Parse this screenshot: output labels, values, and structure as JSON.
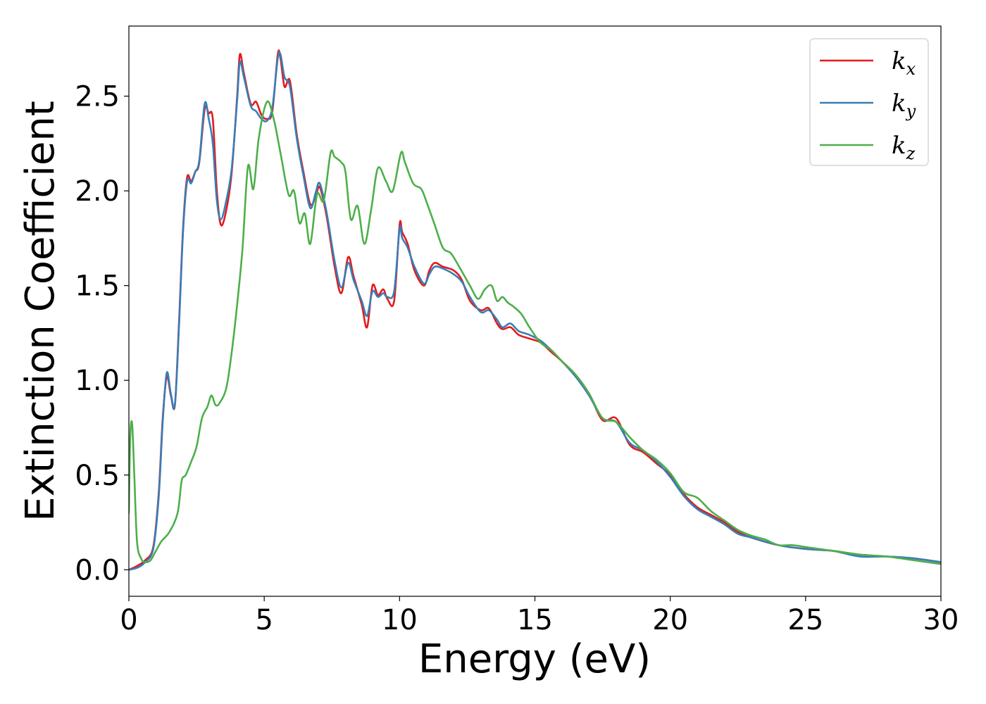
{
  "chart_data": {
    "type": "line",
    "xlabel": "Energy (eV)",
    "ylabel": "Extinction Coefficient",
    "xlim": [
      0,
      30
    ],
    "ylim": [
      -0.14,
      2.87
    ],
    "xticks": [
      0,
      5,
      10,
      15,
      20,
      25,
      30
    ],
    "xtick_labels": [
      "0",
      "5",
      "10",
      "15",
      "20",
      "25",
      "30"
    ],
    "yticks": [
      0.0,
      0.5,
      1.0,
      1.5,
      2.0,
      2.5
    ],
    "ytick_labels": [
      "0.0",
      "0.5",
      "1.0",
      "1.5",
      "2.0",
      "2.5"
    ],
    "grid": false,
    "legend_position": "top-right",
    "series": [
      {
        "name": "k",
        "subscript": "x",
        "color": "#e41a1c",
        "x": [
          0,
          0.3,
          0.6,
          0.9,
          1.1,
          1.25,
          1.4,
          1.55,
          1.7,
          1.85,
          2.0,
          2.15,
          2.3,
          2.45,
          2.6,
          2.8,
          2.95,
          3.1,
          3.25,
          3.4,
          3.6,
          3.8,
          4.0,
          4.1,
          4.25,
          4.5,
          4.7,
          4.9,
          5.1,
          5.3,
          5.5,
          5.6,
          5.75,
          5.95,
          6.2,
          6.45,
          6.7,
          6.9,
          7.05,
          7.3,
          7.6,
          7.85,
          8.1,
          8.3,
          8.6,
          8.8,
          9.0,
          9.2,
          9.4,
          9.55,
          9.8,
          10.0,
          10.1,
          10.3,
          10.55,
          10.9,
          11.1,
          11.3,
          11.6,
          12.0,
          12.3,
          12.6,
          13.0,
          13.3,
          13.6,
          13.8,
          14.1,
          14.4,
          14.8,
          15.2,
          15.6,
          16.0,
          16.5,
          17.0,
          17.5,
          18.0,
          18.5,
          19.0,
          19.5,
          20.0,
          20.5,
          21.0,
          21.5,
          22.0,
          22.5,
          23.0,
          24.0,
          25.0,
          26.0,
          27.0,
          28.0,
          29.0,
          30.0
        ],
        "values": [
          0.0,
          0.02,
          0.05,
          0.12,
          0.4,
          0.8,
          1.02,
          0.92,
          0.87,
          1.3,
          1.8,
          2.07,
          2.05,
          2.1,
          2.15,
          2.43,
          2.41,
          2.38,
          2.0,
          1.82,
          1.9,
          2.1,
          2.5,
          2.72,
          2.62,
          2.46,
          2.47,
          2.4,
          2.38,
          2.42,
          2.72,
          2.7,
          2.55,
          2.58,
          2.3,
          2.1,
          1.93,
          1.97,
          2.02,
          1.87,
          1.6,
          1.46,
          1.65,
          1.55,
          1.4,
          1.28,
          1.5,
          1.45,
          1.48,
          1.43,
          1.42,
          1.82,
          1.78,
          1.72,
          1.58,
          1.5,
          1.58,
          1.62,
          1.6,
          1.58,
          1.53,
          1.42,
          1.37,
          1.38,
          1.3,
          1.27,
          1.28,
          1.24,
          1.22,
          1.2,
          1.15,
          1.1,
          1.03,
          0.93,
          0.79,
          0.8,
          0.66,
          0.62,
          0.56,
          0.5,
          0.4,
          0.33,
          0.29,
          0.25,
          0.2,
          0.17,
          0.13,
          0.11,
          0.1,
          0.08,
          0.07,
          0.06,
          0.04
        ]
      },
      {
        "name": "k",
        "subscript": "y",
        "color": "#377eb8",
        "x": [
          0,
          0.3,
          0.6,
          0.9,
          1.1,
          1.25,
          1.4,
          1.55,
          1.7,
          1.85,
          2.0,
          2.15,
          2.3,
          2.45,
          2.6,
          2.8,
          2.95,
          3.1,
          3.25,
          3.4,
          3.6,
          3.8,
          4.0,
          4.1,
          4.25,
          4.5,
          4.7,
          4.9,
          5.1,
          5.3,
          5.5,
          5.6,
          5.75,
          5.95,
          6.2,
          6.45,
          6.7,
          6.9,
          7.05,
          7.3,
          7.6,
          7.85,
          8.1,
          8.3,
          8.6,
          8.8,
          9.0,
          9.2,
          9.4,
          9.55,
          9.8,
          10.0,
          10.1,
          10.3,
          10.55,
          10.9,
          11.1,
          11.3,
          11.6,
          12.0,
          12.3,
          12.6,
          13.0,
          13.3,
          13.6,
          13.8,
          14.1,
          14.4,
          14.8,
          15.2,
          15.6,
          16.0,
          16.5,
          17.0,
          17.5,
          18.0,
          18.5,
          19.0,
          19.5,
          20.0,
          20.5,
          21.0,
          21.5,
          22.0,
          22.5,
          23.0,
          24.0,
          25.0,
          26.0,
          27.0,
          28.0,
          29.0,
          30.0
        ],
        "values": [
          0.0,
          0.01,
          0.04,
          0.11,
          0.38,
          0.78,
          1.04,
          0.93,
          0.87,
          1.28,
          1.78,
          2.05,
          2.04,
          2.1,
          2.16,
          2.46,
          2.38,
          2.25,
          1.95,
          1.85,
          1.95,
          2.12,
          2.48,
          2.68,
          2.6,
          2.45,
          2.42,
          2.38,
          2.37,
          2.44,
          2.7,
          2.72,
          2.6,
          2.55,
          2.28,
          2.08,
          1.91,
          1.99,
          2.04,
          1.89,
          1.63,
          1.49,
          1.62,
          1.53,
          1.42,
          1.34,
          1.47,
          1.44,
          1.46,
          1.44,
          1.47,
          1.8,
          1.75,
          1.7,
          1.6,
          1.51,
          1.56,
          1.6,
          1.59,
          1.56,
          1.52,
          1.44,
          1.36,
          1.37,
          1.32,
          1.28,
          1.3,
          1.26,
          1.24,
          1.21,
          1.16,
          1.1,
          1.02,
          0.92,
          0.8,
          0.78,
          0.67,
          0.63,
          0.57,
          0.49,
          0.39,
          0.32,
          0.28,
          0.24,
          0.19,
          0.17,
          0.13,
          0.11,
          0.1,
          0.07,
          0.07,
          0.06,
          0.04
        ]
      },
      {
        "name": "k",
        "subscript": "z",
        "color": "#4daf4a",
        "x": [
          0,
          0.05,
          0.12,
          0.2,
          0.3,
          0.45,
          0.6,
          0.8,
          1.0,
          1.2,
          1.5,
          1.8,
          1.95,
          2.1,
          2.3,
          2.5,
          2.7,
          2.9,
          3.05,
          3.2,
          3.35,
          3.6,
          3.8,
          4.0,
          4.2,
          4.4,
          4.6,
          4.8,
          5.1,
          5.35,
          5.6,
          5.9,
          6.1,
          6.3,
          6.5,
          6.7,
          6.95,
          7.2,
          7.45,
          7.6,
          7.85,
          8.0,
          8.2,
          8.45,
          8.7,
          8.95,
          9.2,
          9.5,
          9.75,
          10.05,
          10.2,
          10.5,
          10.8,
          11.0,
          11.3,
          11.6,
          11.9,
          12.2,
          12.6,
          12.9,
          13.15,
          13.4,
          13.6,
          13.8,
          14.0,
          14.2,
          14.5,
          14.8,
          15.2,
          15.6,
          16.0,
          16.5,
          17.0,
          17.5,
          18.0,
          18.5,
          19.0,
          19.5,
          20.0,
          20.5,
          21.0,
          21.5,
          22.0,
          22.5,
          23.0,
          23.5,
          24.0,
          24.5,
          25.0,
          26.0,
          27.0,
          28.0,
          29.0,
          30.0
        ],
        "values": [
          0.3,
          0.7,
          0.77,
          0.5,
          0.15,
          0.06,
          0.04,
          0.05,
          0.1,
          0.15,
          0.2,
          0.3,
          0.47,
          0.5,
          0.57,
          0.65,
          0.8,
          0.86,
          0.92,
          0.87,
          0.88,
          0.96,
          1.15,
          1.4,
          1.7,
          2.13,
          2.01,
          2.28,
          2.47,
          2.38,
          2.2,
          1.98,
          2.0,
          1.83,
          1.88,
          1.72,
          1.98,
          1.95,
          2.2,
          2.18,
          2.15,
          2.1,
          1.85,
          1.92,
          1.72,
          1.9,
          2.12,
          2.05,
          2.0,
          2.2,
          2.15,
          2.04,
          2.01,
          1.94,
          1.82,
          1.7,
          1.67,
          1.6,
          1.5,
          1.43,
          1.48,
          1.5,
          1.42,
          1.44,
          1.41,
          1.39,
          1.35,
          1.28,
          1.2,
          1.16,
          1.1,
          1.03,
          0.93,
          0.8,
          0.78,
          0.7,
          0.63,
          0.58,
          0.51,
          0.41,
          0.38,
          0.31,
          0.26,
          0.21,
          0.18,
          0.16,
          0.13,
          0.13,
          0.12,
          0.1,
          0.08,
          0.07,
          0.05,
          0.03
        ]
      }
    ]
  }
}
